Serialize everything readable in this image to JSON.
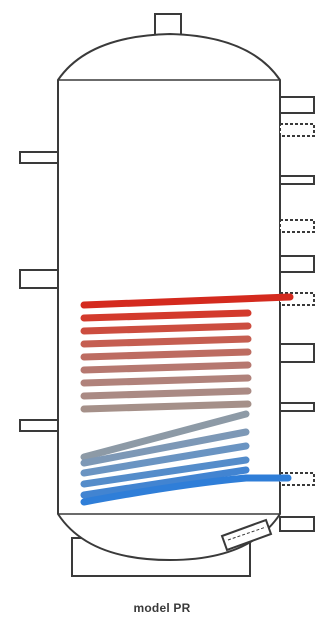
{
  "caption": "model PR",
  "colors": {
    "outline": "#3a3a3a",
    "tank_fill": "#ffffff",
    "coil_hot": "#d42a1e",
    "coil_mid": "#b08a83",
    "coil_cool": "#8d9aa6",
    "coil_cold": "#2f7ed8"
  },
  "icons": {
    "hot_coil": "upper-heating-coil-icon",
    "cold_coil": "lower-heating-coil-icon"
  }
}
